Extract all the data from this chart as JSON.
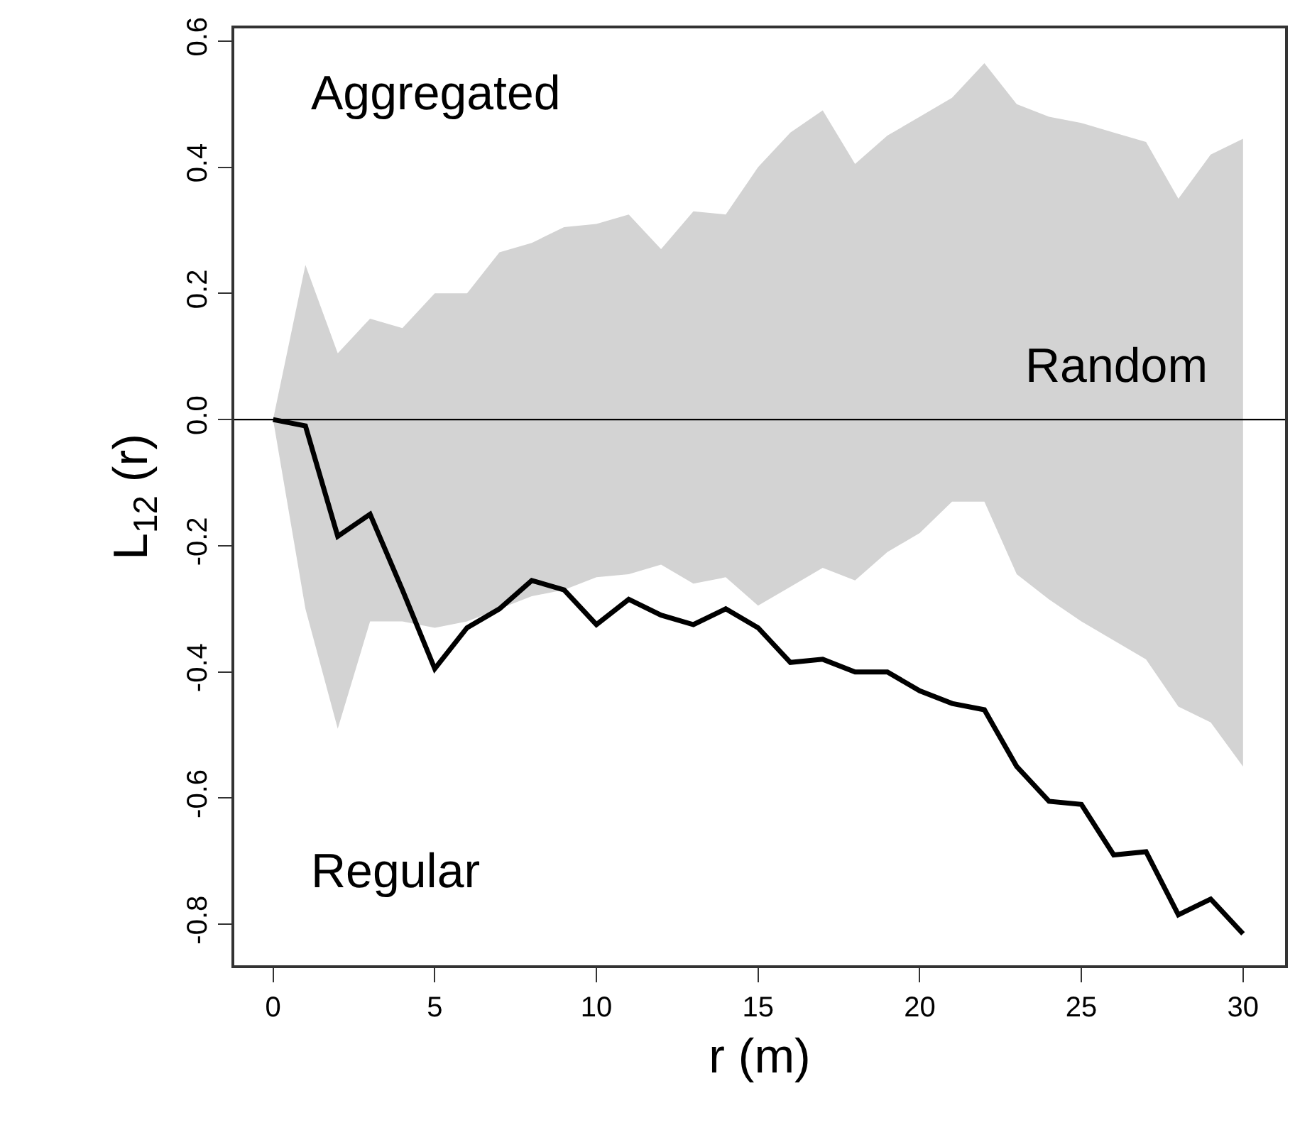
{
  "chart_data": {
    "type": "line",
    "xlabel": "r (m)",
    "ylabel": "L$_{12}$ (r)",
    "x": [
      0,
      1,
      2,
      3,
      4,
      5,
      6,
      7,
      8,
      9,
      10,
      11,
      12,
      13,
      14,
      15,
      16,
      17,
      18,
      19,
      20,
      21,
      22,
      23,
      24,
      25,
      26,
      27,
      28,
      29,
      30
    ],
    "series": [
      {
        "color": "#000000",
        "values": [
          0,
          -0.01,
          -0.185,
          -0.15,
          -0.27,
          -0.395,
          -0.33,
          -0.3,
          -0.255,
          -0.27,
          -0.325,
          -0.285,
          -0.31,
          -0.325,
          -0.3,
          -0.33,
          -0.385,
          -0.38,
          -0.4,
          -0.4,
          -0.43,
          -0.45,
          -0.46,
          -0.55,
          -0.605,
          -0.61,
          -0.69,
          -0.685,
          -0.785,
          -0.76,
          -0.815
        ],
        "lower": [
          0,
          -0.3,
          -0.49,
          -0.32,
          -0.32,
          -0.33,
          -0.32,
          -0.3,
          -0.28,
          -0.27,
          -0.25,
          -0.245,
          -0.23,
          -0.26,
          -0.25,
          -0.295,
          -0.265,
          -0.235,
          -0.255,
          -0.21,
          -0.18,
          -0.13,
          -0.13,
          -0.245,
          -0.285,
          -0.32,
          -0.35,
          -0.38,
          -0.455,
          -0.48,
          -0.55
        ],
        "upper": [
          0,
          0.245,
          0.105,
          0.16,
          0.145,
          0.2,
          0.2,
          0.265,
          0.28,
          0.305,
          0.31,
          0.325,
          0.27,
          0.33,
          0.325,
          0.4,
          0.455,
          0.49,
          0.405,
          0.45,
          0.48,
          0.51,
          0.565,
          0.5,
          0.48,
          0.47,
          0.455,
          0.44,
          0.35,
          0.42,
          0.445
        ]
      }
    ],
    "xlim": [
      -1.2,
      31.3
    ],
    "ylim": [
      -0.865,
      0.62
    ],
    "xticks": [
      0,
      5,
      10,
      15,
      20,
      25,
      30
    ],
    "yticks": [
      {
        "value": -0.8,
        "label": "-0.8"
      },
      {
        "value": -0.6,
        "label": "-0.6"
      },
      {
        "value": -0.4,
        "label": "-0.4"
      },
      {
        "value": -0.2,
        "label": "-0.2"
      },
      {
        "value": 0,
        "label": "0.0"
      },
      {
        "value": 0.2,
        "label": "0.2"
      },
      {
        "value": 0.4,
        "label": "0.4"
      },
      {
        "value": 0.6,
        "label": "0.6"
      }
    ],
    "ref_lines": [
      {
        "axis": "y",
        "value": 0,
        "color": "#000000"
      }
    ],
    "annotations": [
      "Aggregated",
      "Random",
      "Regular"
    ],
    "grid": false,
    "marker": "none",
    "line_style": "solid"
  }
}
